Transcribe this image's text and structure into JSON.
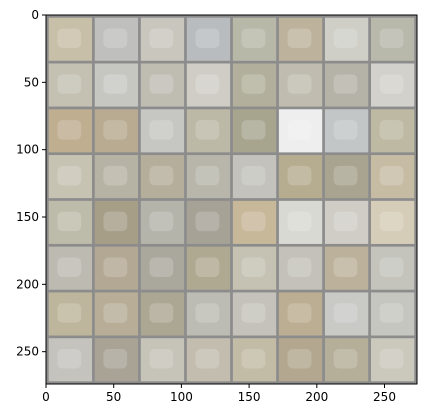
{
  "chart_data": {
    "type": "heatmap",
    "title": "",
    "xlabel": "",
    "ylabel": "",
    "xlim": [
      0,
      274
    ],
    "ylim": [
      274,
      0
    ],
    "x_ticks": [
      "0",
      "50",
      "100",
      "150",
      "200",
      "250"
    ],
    "x_tick_values": [
      0,
      50,
      100,
      150,
      200,
      250
    ],
    "y_ticks": [
      "0",
      "50",
      "100",
      "150",
      "200",
      "250"
    ],
    "y_tick_values": [
      0,
      50,
      100,
      150,
      200,
      250
    ],
    "grid_rows": 8,
    "grid_cols": 8,
    "tile_size": 32,
    "tile_padding": 2,
    "padding_color": "#8c8c8c",
    "tile_colors": [
      [
        "#c8bfa8",
        "#bfc0bd",
        "#c9c6bd",
        "#b9bcbf",
        "#b8b8a8",
        "#bdb39c",
        "#cfcfc8",
        "#b8b8ab"
      ],
      [
        "#c4c0b2",
        "#c7c7c2",
        "#bfbcb2",
        "#cfcdc6",
        "#b2b09c",
        "#c0bdb0",
        "#b5b3a8",
        "#d2d1cb"
      ],
      [
        "#bfae90",
        "#b8ab91",
        "#c6c6c3",
        "#bcb9a6",
        "#a8a58f",
        "#eeeeee",
        "#c3c6c7",
        "#bdb9a3"
      ],
      [
        "#c7c3b3",
        "#b7b3a4",
        "#b5ae9b",
        "#b8b6aa",
        "#c3c2bc",
        "#b6ac90",
        "#a9a48f",
        "#c6bca4"
      ],
      [
        "#bdbcaa",
        "#a79e88",
        "#b4b4ab",
        "#a6a296",
        "#c8b89a",
        "#d9d9d4",
        "#cfcdc6",
        "#d6cdb8"
      ],
      [
        "#bcbab1",
        "#b3a893",
        "#aaa89d",
        "#b0a992",
        "#c5c2b3",
        "#c3c1b9",
        "#bcb29c",
        "#c4c4bd"
      ],
      [
        "#bdb59c",
        "#b8ae98",
        "#aca793",
        "#bcbcb4",
        "#c4c2ba",
        "#bcae92",
        "#c9c9c6",
        "#c6c6c0"
      ],
      [
        "#c4c3bd",
        "#a9a396",
        "#c6c3b9",
        "#c2bdae",
        "#c2bba6",
        "#b3a88f",
        "#b5ae99",
        "#cbc8bc"
      ]
    ]
  }
}
